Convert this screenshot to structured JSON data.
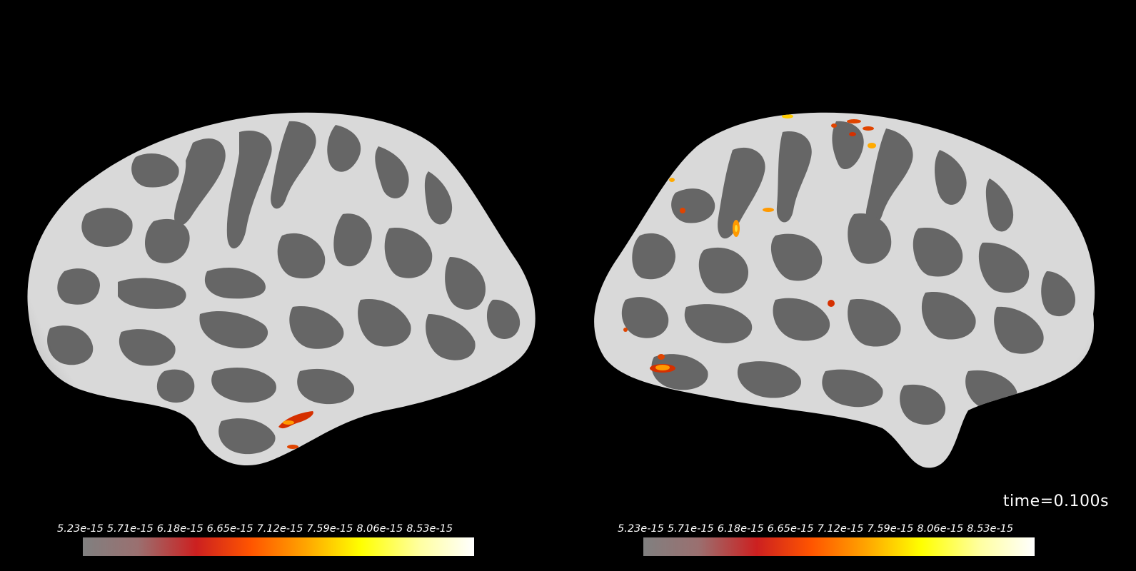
{
  "colormap": {
    "stops": [
      "#808080",
      "#9a7070",
      "#cc2020",
      "#ff5500",
      "#ffa500",
      "#ffff00",
      "#ffffa0",
      "#ffffff"
    ],
    "ticks": [
      "5.23e-15",
      "5.71e-15",
      "6.18e-15",
      "6.65e-15",
      "7.12e-15",
      "7.59e-15",
      "8.06e-15",
      "8.53e-15"
    ]
  },
  "views": [
    {
      "hemisphere": "lh",
      "colorbar_ticks": [
        "5.23e-15",
        "5.71e-15",
        "6.18e-15",
        "6.65e-15",
        "7.12e-15",
        "7.59e-15",
        "8.06e-15",
        "8.53e-15"
      ]
    },
    {
      "hemisphere": "rh",
      "colorbar_ticks": [
        "5.23e-15",
        "5.71e-15",
        "6.18e-15",
        "6.65e-15",
        "7.12e-15",
        "7.59e-15",
        "8.06e-15",
        "8.53e-15"
      ]
    }
  ],
  "time_label": "time=0.100s",
  "colors": {
    "background": "#000000",
    "gyri": "#d8d8d8",
    "sulci": "#666666",
    "activation_low": "#d53000",
    "activation_high": "#ffcc00"
  }
}
